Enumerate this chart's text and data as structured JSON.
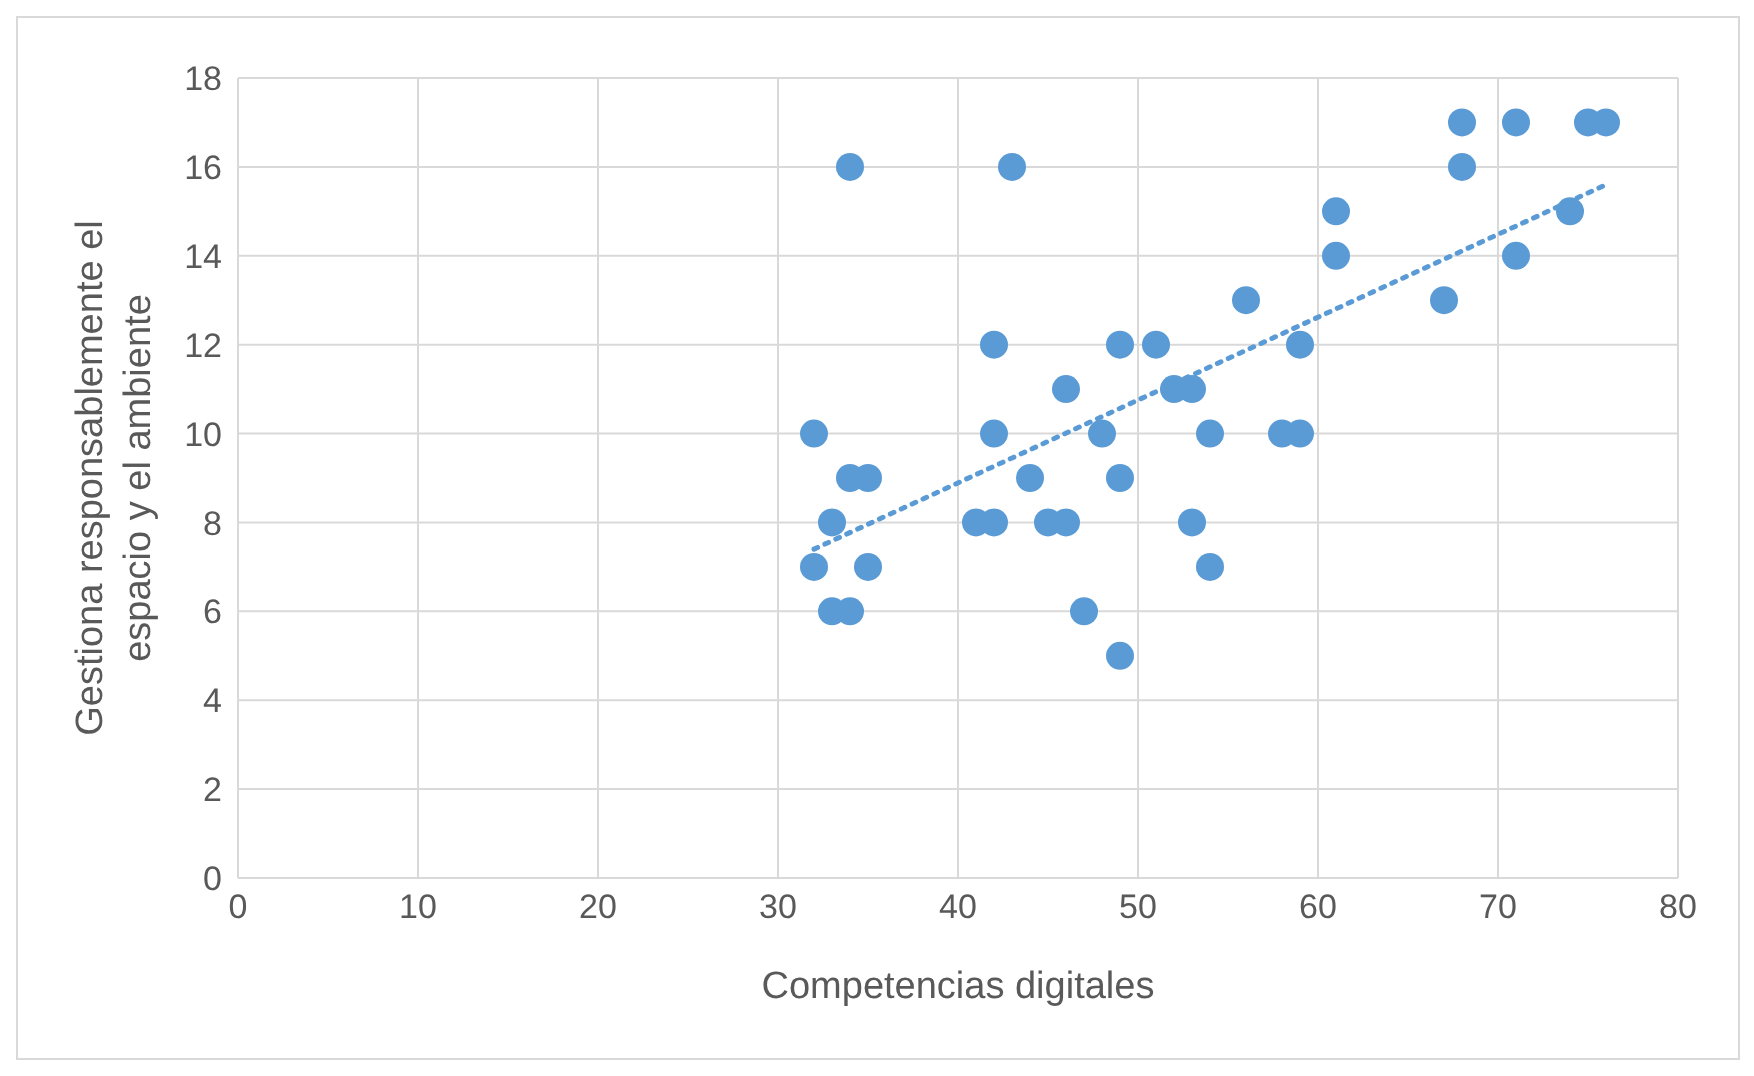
{
  "chart_data": {
    "type": "scatter",
    "xlabel": "Competencias digitales",
    "ylabel": "Gestiona responsablemente el espacio y el ambiente",
    "xlim": [
      0,
      80
    ],
    "xticks": [
      0,
      10,
      20,
      30,
      40,
      50,
      60,
      70,
      80
    ],
    "ylim": [
      0,
      18
    ],
    "yticks": [
      0,
      2,
      4,
      6,
      8,
      10,
      12,
      14,
      16,
      18
    ],
    "grid": true,
    "legend": false,
    "marker": "circle",
    "series": [
      {
        "color": "#5b9bd5",
        "x": [
          32,
          32,
          33,
          33,
          34,
          34,
          35,
          35,
          34,
          43,
          41,
          42,
          42,
          42,
          44,
          45,
          46,
          46,
          47,
          48,
          49,
          49,
          49,
          51,
          52,
          53,
          53,
          54,
          54,
          56,
          58,
          59,
          59,
          61,
          61,
          67,
          68,
          68,
          71,
          71,
          74,
          75,
          76
        ],
        "values": [
          10,
          7,
          8,
          6,
          6,
          9,
          9,
          7,
          16,
          16,
          8,
          8,
          10,
          12,
          9,
          8,
          8,
          11,
          6,
          10,
          12,
          9,
          5,
          12,
          11,
          11,
          8,
          10,
          7,
          13,
          10,
          10,
          12,
          15,
          14,
          13,
          17,
          16,
          17,
          14,
          15,
          17,
          17
        ]
      },
      {
        "type": "line",
        "color": "#5b9bd5",
        "line_style": "dotted",
        "marker": "none",
        "x": [
          32,
          76
        ],
        "values": [
          7.4,
          15.6
        ]
      }
    ]
  }
}
